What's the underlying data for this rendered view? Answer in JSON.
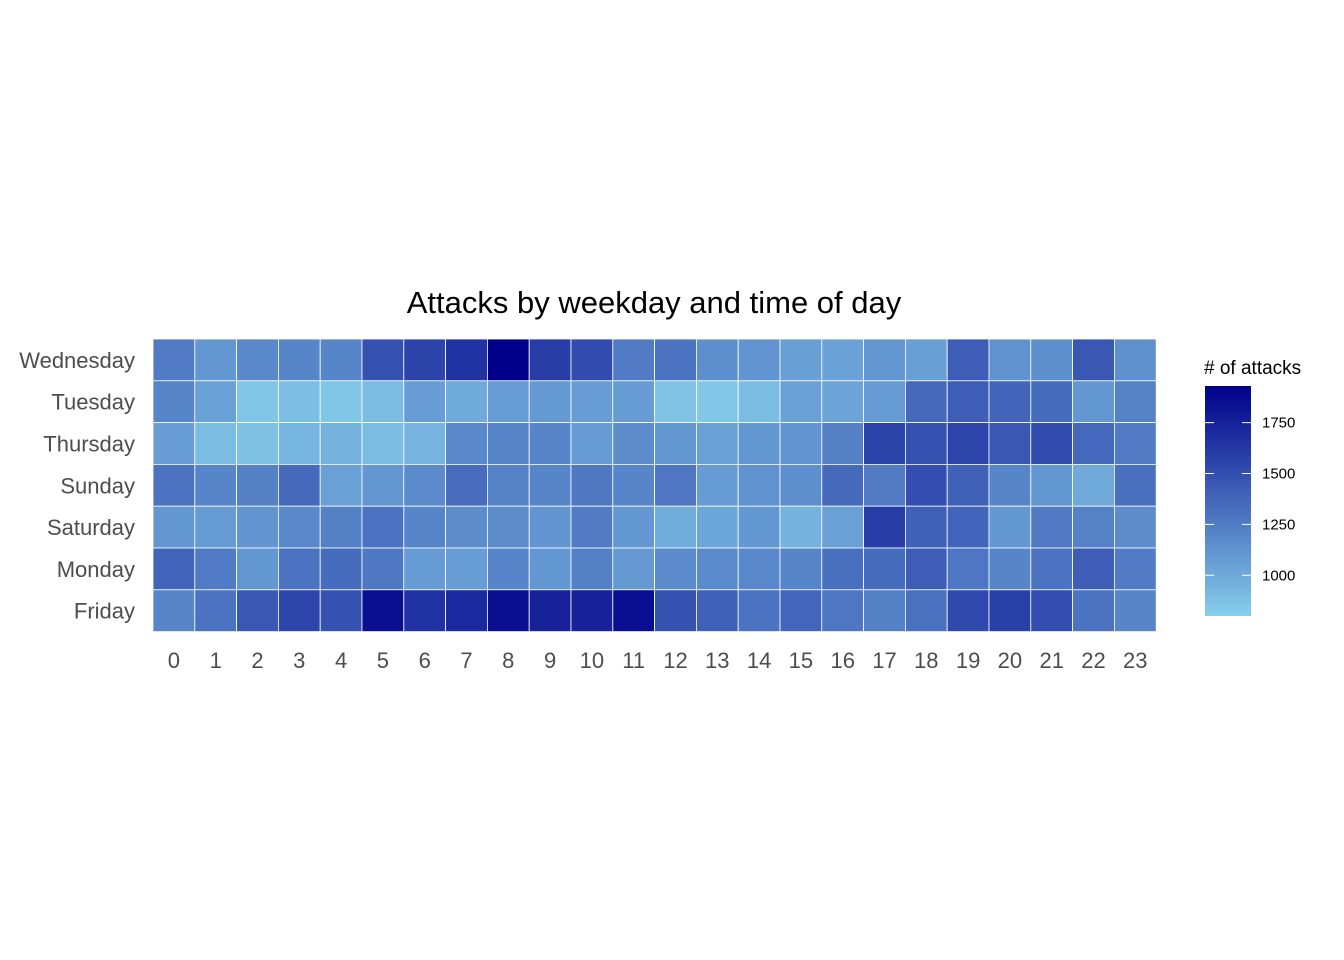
{
  "chart_data": {
    "type": "heatmap",
    "title": "Attacks by weekday and time of day",
    "xlabel": "",
    "ylabel": "",
    "x": [
      0,
      1,
      2,
      3,
      4,
      5,
      6,
      7,
      8,
      9,
      10,
      11,
      12,
      13,
      14,
      15,
      16,
      17,
      18,
      19,
      20,
      21,
      22,
      23
    ],
    "y": [
      "Wednesday",
      "Tuesday",
      "Thursday",
      "Sunday",
      "Saturday",
      "Monday",
      "Friday"
    ],
    "values": [
      [
        1250,
        1100,
        1180,
        1200,
        1200,
        1480,
        1560,
        1650,
        1930,
        1600,
        1520,
        1250,
        1300,
        1150,
        1120,
        1060,
        1040,
        1100,
        1060,
        1420,
        1130,
        1150,
        1450,
        1140
      ],
      [
        1200,
        1050,
        850,
        880,
        850,
        900,
        1070,
        1000,
        1070,
        1090,
        1070,
        1080,
        860,
        840,
        900,
        1050,
        1030,
        1080,
        1350,
        1420,
        1380,
        1340,
        1100,
        1220
      ],
      [
        1070,
        900,
        870,
        930,
        950,
        900,
        940,
        1180,
        1200,
        1200,
        1080,
        1160,
        1100,
        1050,
        1100,
        1120,
        1230,
        1560,
        1480,
        1550,
        1450,
        1520,
        1360,
        1250
      ],
      [
        1300,
        1200,
        1230,
        1350,
        1050,
        1100,
        1170,
        1330,
        1210,
        1200,
        1270,
        1200,
        1280,
        1080,
        1130,
        1150,
        1350,
        1250,
        1500,
        1400,
        1200,
        1100,
        1000,
        1320
      ],
      [
        1100,
        1080,
        1120,
        1180,
        1230,
        1300,
        1200,
        1160,
        1160,
        1120,
        1250,
        1100,
        980,
        1020,
        1100,
        950,
        1050,
        1600,
        1400,
        1380,
        1100,
        1260,
        1220,
        1160
      ],
      [
        1380,
        1250,
        1100,
        1300,
        1340,
        1270,
        1080,
        1070,
        1200,
        1100,
        1230,
        1090,
        1170,
        1170,
        1190,
        1200,
        1320,
        1340,
        1420,
        1280,
        1200,
        1300,
        1420,
        1250
      ],
      [
        1200,
        1300,
        1450,
        1550,
        1480,
        1850,
        1650,
        1700,
        1850,
        1750,
        1750,
        1850,
        1480,
        1400,
        1300,
        1370,
        1280,
        1230,
        1310,
        1530,
        1580,
        1500,
        1300,
        1200
      ]
    ],
    "color_scale": {
      "low": "#87ceeb",
      "high": "#00008b",
      "min": 800,
      "max": 1930
    },
    "legend": {
      "title": "# of attacks",
      "ticks": [
        1000,
        1250,
        1500,
        1750
      ],
      "placement": "right"
    },
    "grid": false
  }
}
